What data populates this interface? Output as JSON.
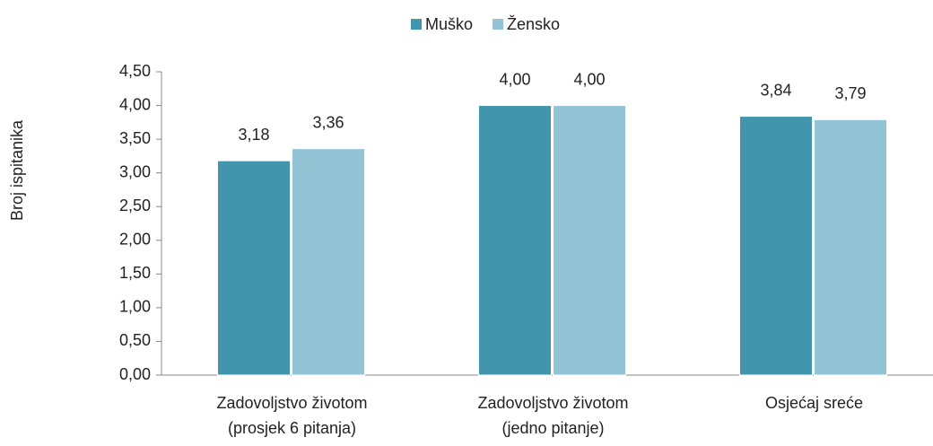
{
  "chart_data": {
    "type": "bar",
    "y_label": "Broj ispitanika",
    "categories": [
      [
        "Zadovoljstvo životom",
        "(prosjek 6 pitanja)"
      ],
      [
        "Zadovoljstvo životom",
        "(jedno pitanje)"
      ],
      [
        "Osjećaj sreće"
      ]
    ],
    "series": [
      {
        "name": "Muško",
        "color": "#4196ad",
        "values": [
          3.18,
          4.0,
          3.84
        ],
        "value_labels": [
          "3,18",
          "4,00",
          "3,84"
        ]
      },
      {
        "name": "Žensko",
        "color": "#93c4d6",
        "values": [
          3.36,
          4.0,
          3.79
        ],
        "value_labels": [
          "3,36",
          "4,00",
          "3,79"
        ]
      }
    ],
    "ylim": [
      0,
      4.5
    ],
    "yticks": [
      {
        "value": 0,
        "label": "0,00"
      },
      {
        "value": 0.5,
        "label": "0,50"
      },
      {
        "value": 1,
        "label": "1,00"
      },
      {
        "value": 1.5,
        "label": "1,50"
      },
      {
        "value": 2,
        "label": "2,00"
      },
      {
        "value": 2.5,
        "label": "2,50"
      },
      {
        "value": 3,
        "label": "3,00"
      },
      {
        "value": 3.5,
        "label": "3,50"
      },
      {
        "value": 4,
        "label": "4,00"
      },
      {
        "value": 4.5,
        "label": "4,50"
      }
    ],
    "legend": "top"
  }
}
